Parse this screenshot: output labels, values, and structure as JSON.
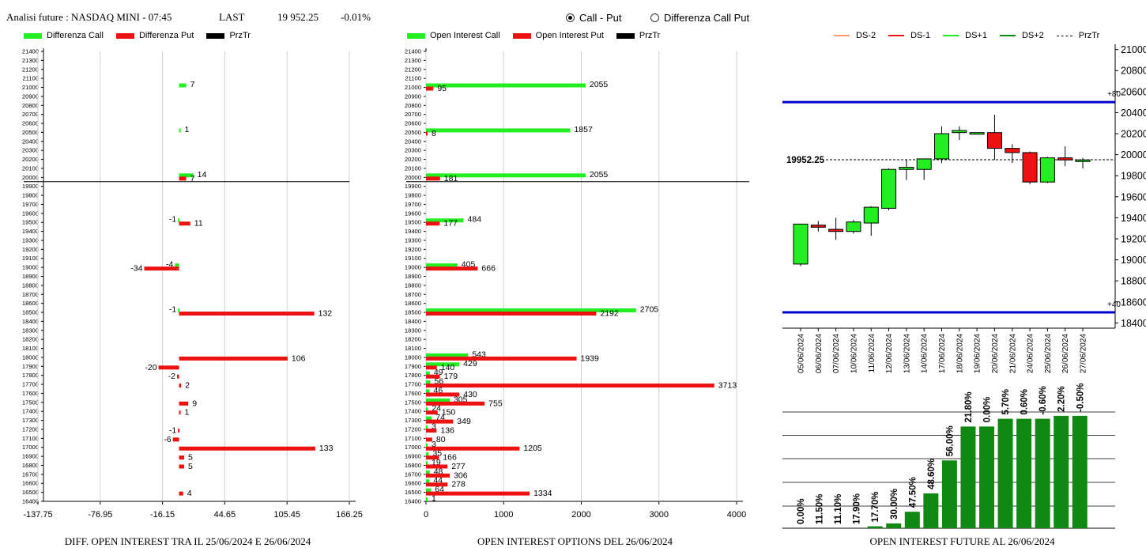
{
  "header": {
    "title": "Analisi future : NASDAQ MINI - 07:45",
    "last_label": "LAST",
    "last_value": "19 952.25",
    "change": "-0.01%"
  },
  "mode": {
    "option1": "Call - Put",
    "option2": "Differenza Call Put",
    "selected": "Call - Put"
  },
  "legend1": {
    "call": "Differenza Call",
    "put": "Differenza Put",
    "prz": "PrzTr"
  },
  "legend2": {
    "call": "Open Interest Call",
    "put": "Open Interest Put",
    "prz": "PrzTr"
  },
  "legend3": {
    "ds_m2": "DS-2",
    "ds_m1": "DS-1",
    "ds_p1": "DS+1",
    "ds_p2": "DS+2",
    "prz": "PrzTr"
  },
  "captions": {
    "left": "DIFF. OPEN INTEREST TRA IL 25/06/2024 E 26/06/2024",
    "middle": "OPEN INTEREST OPTIONS DEL 26/06/2024",
    "right": "OPEN INTEREST FUTURE AL 26/06/2024"
  },
  "colors": {
    "call": "#22ee22",
    "put": "#ee1111",
    "prz": "#000000",
    "level": "#0000cc",
    "oi_bar": "#118811",
    "ds_m2": "#ff9966",
    "ds_m1": "#ee1111",
    "ds_p1": "#22ee22",
    "ds_p2": "#118811"
  },
  "chart_data": [
    {
      "type": "bar",
      "orientation": "horizontal",
      "title": "DIFF. OPEN INTEREST TRA IL 25/06/2024 E 26/06/2024",
      "strike_ticks": [
        21400,
        21300,
        21200,
        21100,
        21000,
        20900,
        20800,
        20700,
        20600,
        20500,
        20400,
        20300,
        20200,
        20100,
        20000,
        19900,
        19800,
        19700,
        19600,
        19500,
        19400,
        19300,
        19200,
        19100,
        19000,
        18900,
        18800,
        18700,
        18600,
        18500,
        18400,
        18300,
        18200,
        18100,
        18000,
        17900,
        17800,
        17700,
        17600,
        17500,
        17400,
        17300,
        17200,
        17100,
        17000,
        16900,
        16800,
        16700,
        16600,
        16500,
        16400
      ],
      "x_ticks": [
        "-137.75",
        "-76.95",
        "-16.15",
        "44.65",
        "105.45",
        "166.25"
      ],
      "xlim": [
        -137.75,
        166.25
      ],
      "prz_tr": 19952.25,
      "series": [
        {
          "name": "Differenza Call",
          "points": [
            {
              "strike": 21000,
              "value": 7
            },
            {
              "strike": 20500,
              "value": 1
            },
            {
              "strike": 20000,
              "value": 14
            },
            {
              "strike": 19500,
              "value": -1
            },
            {
              "strike": 19000,
              "value": -4
            },
            {
              "strike": 18500,
              "value": -1
            }
          ]
        },
        {
          "name": "Differenza Put",
          "points": [
            {
              "strike": 20000,
              "value": 7
            },
            {
              "strike": 19500,
              "value": 11
            },
            {
              "strike": 19000,
              "value": -34
            },
            {
              "strike": 18500,
              "value": 132
            },
            {
              "strike": 18000,
              "value": 106
            },
            {
              "strike": 17900,
              "value": -20
            },
            {
              "strike": 17800,
              "value": -2
            },
            {
              "strike": 17700,
              "value": 2
            },
            {
              "strike": 17500,
              "value": 9
            },
            {
              "strike": 17400,
              "value": 1
            },
            {
              "strike": 17200,
              "value": -1
            },
            {
              "strike": 17100,
              "value": -6
            },
            {
              "strike": 17000,
              "value": 133
            },
            {
              "strike": 16900,
              "value": 5
            },
            {
              "strike": 16800,
              "value": 5
            },
            {
              "strike": 16500,
              "value": 4
            }
          ]
        }
      ]
    },
    {
      "type": "bar",
      "orientation": "horizontal",
      "title": "OPEN INTEREST OPTIONS DEL 26/06/2024",
      "strike_ticks": [
        21400,
        21300,
        21200,
        21100,
        21000,
        20900,
        20800,
        20700,
        20600,
        20500,
        20400,
        20300,
        20200,
        20100,
        20000,
        19900,
        19800,
        19700,
        19600,
        19500,
        19400,
        19300,
        19200,
        19100,
        19000,
        18900,
        18800,
        18700,
        18600,
        18500,
        18400,
        18300,
        18200,
        18100,
        18000,
        17900,
        17800,
        17700,
        17600,
        17500,
        17400,
        17300,
        17200,
        17100,
        17000,
        16900,
        16800,
        16700,
        16600,
        16500,
        16400
      ],
      "x_ticks": [
        "0",
        "1000",
        "2000",
        "3000",
        "4000"
      ],
      "xlim": [
        0,
        4000
      ],
      "prz_tr": 19952.25,
      "series": [
        {
          "name": "Open Interest Call",
          "points": [
            {
              "strike": 21000,
              "value": 2055
            },
            {
              "strike": 20500,
              "value": 1857
            },
            {
              "strike": 20000,
              "value": 2055
            },
            {
              "strike": 19500,
              "value": 484
            },
            {
              "strike": 19000,
              "value": 405
            },
            {
              "strike": 18500,
              "value": 2705
            },
            {
              "strike": 18000,
              "value": 543
            },
            {
              "strike": 17900,
              "value": 429
            },
            {
              "strike": 17800,
              "value": 49
            },
            {
              "strike": 17700,
              "value": 56
            },
            {
              "strike": 17600,
              "value": 46
            },
            {
              "strike": 17500,
              "value": 305
            },
            {
              "strike": 17400,
              "value": 24
            },
            {
              "strike": 17300,
              "value": 74
            },
            {
              "strike": 17200,
              "value": 3
            },
            {
              "strike": 17000,
              "value": 3
            },
            {
              "strike": 16900,
              "value": 35
            },
            {
              "strike": 16800,
              "value": 19
            },
            {
              "strike": 16700,
              "value": 48
            },
            {
              "strike": 16600,
              "value": 44
            },
            {
              "strike": 16500,
              "value": 64
            },
            {
              "strike": 16400,
              "value": 1
            }
          ]
        },
        {
          "name": "Open Interest Put",
          "points": [
            {
              "strike": 21000,
              "value": 95
            },
            {
              "strike": 20500,
              "value": 8
            },
            {
              "strike": 20000,
              "value": 181
            },
            {
              "strike": 19500,
              "value": 177
            },
            {
              "strike": 19000,
              "value": 666
            },
            {
              "strike": 18500,
              "value": 2192
            },
            {
              "strike": 18000,
              "value": 1939
            },
            {
              "strike": 17900,
              "value": 140
            },
            {
              "strike": 17800,
              "value": 179
            },
            {
              "strike": 17700,
              "value": 3713
            },
            {
              "strike": 17600,
              "value": 430
            },
            {
              "strike": 17500,
              "value": 755
            },
            {
              "strike": 17400,
              "value": 150
            },
            {
              "strike": 17300,
              "value": 349
            },
            {
              "strike": 17200,
              "value": 136
            },
            {
              "strike": 17100,
              "value": 80
            },
            {
              "strike": 17000,
              "value": 1205
            },
            {
              "strike": 16900,
              "value": 166
            },
            {
              "strike": 16800,
              "value": 277
            },
            {
              "strike": 16700,
              "value": 306
            },
            {
              "strike": 16600,
              "value": 278
            },
            {
              "strike": 16500,
              "value": 1334
            }
          ]
        }
      ]
    },
    {
      "type": "candlestick",
      "y_ticks": [
        21000,
        20800,
        20600,
        20400,
        20200,
        20000,
        19800,
        19600,
        19400,
        19200,
        19000,
        18800,
        18600,
        18400
      ],
      "ylim": [
        18350,
        21050
      ],
      "price_label": "19952.25",
      "prz_tr": 19952.25,
      "levels": [
        {
          "value": 20500,
          "label": "+80"
        },
        {
          "value": 18500,
          "label": "+40"
        }
      ],
      "dates": [
        "05/06/2024",
        "06/06/2024",
        "07/06/2024",
        "10/06/2024",
        "11/06/2024",
        "12/06/2024",
        "13/06/2024",
        "14/06/2024",
        "17/06/2024",
        "18/06/2024",
        "19/06/2024",
        "20/06/2024",
        "21/06/2024",
        "24/06/2024",
        "25/06/2024",
        "26/06/2024",
        "27/06/2024"
      ],
      "candles": [
        {
          "date": "05/06/2024",
          "open": 18960,
          "high": 19340,
          "low": 18940,
          "close": 19340
        },
        {
          "date": "06/06/2024",
          "open": 19330,
          "high": 19370,
          "low": 19270,
          "close": 19310
        },
        {
          "date": "07/06/2024",
          "open": 19290,
          "high": 19400,
          "low": 19190,
          "close": 19270
        },
        {
          "date": "10/06/2024",
          "open": 19270,
          "high": 19380,
          "low": 19250,
          "close": 19360
        },
        {
          "date": "11/06/2024",
          "open": 19350,
          "high": 19510,
          "low": 19230,
          "close": 19500
        },
        {
          "date": "12/06/2024",
          "open": 19490,
          "high": 19870,
          "low": 19470,
          "close": 19860
        },
        {
          "date": "13/06/2024",
          "open": 19860,
          "high": 19950,
          "low": 19760,
          "close": 19880
        },
        {
          "date": "14/06/2024",
          "open": 19860,
          "high": 19960,
          "low": 19760,
          "close": 19960
        },
        {
          "date": "17/06/2024",
          "open": 19960,
          "high": 20270,
          "low": 19920,
          "close": 20200
        },
        {
          "date": "18/06/2024",
          "open": 20210,
          "high": 20270,
          "low": 20140,
          "close": 20230
        },
        {
          "date": "19/06/2024",
          "open": 20210,
          "high": 20210,
          "low": 20200,
          "close": 20210
        },
        {
          "date": "20/06/2024",
          "open": 20210,
          "high": 20380,
          "low": 19950,
          "close": 20060
        },
        {
          "date": "21/06/2024",
          "open": 20060,
          "high": 20100,
          "low": 19920,
          "close": 20020
        },
        {
          "date": "24/06/2024",
          "open": 20020,
          "high": 20030,
          "low": 19720,
          "close": 19740
        },
        {
          "date": "25/06/2024",
          "open": 19740,
          "high": 19980,
          "low": 19730,
          "close": 19970
        },
        {
          "date": "26/06/2024",
          "open": 19970,
          "high": 20080,
          "low": 19890,
          "close": 19950
        },
        {
          "date": "27/06/2024",
          "open": 19950,
          "high": 19970,
          "low": 19870,
          "close": 19950
        }
      ]
    },
    {
      "type": "bar",
      "categories": [
        "05/06/2024",
        "06/06/2024",
        "07/06/2024",
        "10/06/2024",
        "11/06/2024",
        "12/06/2024",
        "13/06/2024",
        "14/06/2024",
        "17/06/2024",
        "18/06/2024",
        "19/06/2024",
        "20/06/2024",
        "21/06/2024",
        "24/06/2024",
        "25/06/2024",
        "26/06/2024"
      ],
      "values": [
        0,
        0,
        0,
        0,
        2,
        5,
        17,
        36,
        70,
        105,
        105,
        113,
        113,
        113,
        116,
        116
      ],
      "value_labels": [
        "0.00%",
        "11.50%",
        "11.10%",
        "17.90%",
        "17.70%",
        "30.00%",
        "47.50%",
        "48.60%",
        "56.00%",
        "21.80%",
        "0.00%",
        "5.70%",
        "0.60%",
        "-0.60%",
        "2.20%",
        "-0.50%"
      ],
      "ylim": [
        0,
        120
      ],
      "title": "OPEN INTEREST FUTURE AL 26/06/2024"
    }
  ]
}
